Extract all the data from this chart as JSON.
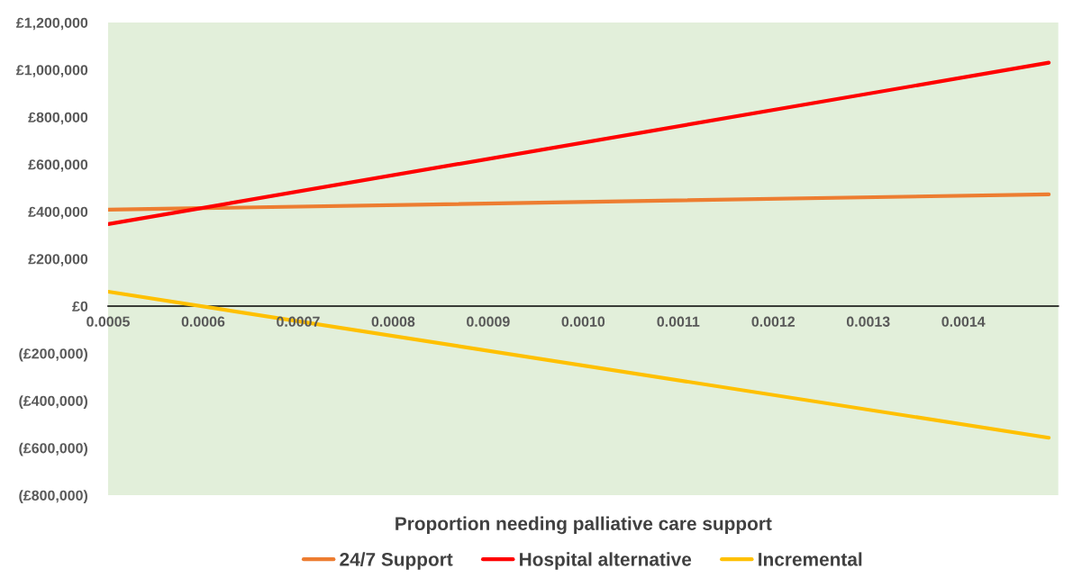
{
  "chart_data": {
    "type": "line",
    "xlabel": "Proportion needing palliative care support",
    "x": [
      0.0005,
      0.00149
    ],
    "series": [
      {
        "name": "24/7 Support",
        "color": "#ed7d31",
        "values": [
          408000,
          473000
        ]
      },
      {
        "name": "Hospital alternative",
        "color": "#ff0000",
        "values": [
          347000,
          1030000
        ]
      },
      {
        "name": "Incremental",
        "color": "#ffc000",
        "values": [
          61000,
          -557000
        ]
      }
    ],
    "xlim": [
      0.0005,
      0.0015
    ],
    "xticks": [
      {
        "value": 0.0005,
        "label": "0.0005"
      },
      {
        "value": 0.0006,
        "label": "0.0006"
      },
      {
        "value": 0.0007,
        "label": "0.0007"
      },
      {
        "value": 0.0008,
        "label": "0.0008"
      },
      {
        "value": 0.0009,
        "label": "0.0009"
      },
      {
        "value": 0.001,
        "label": "0.0010"
      },
      {
        "value": 0.0011,
        "label": "0.0011"
      },
      {
        "value": 0.0012,
        "label": "0.0012"
      },
      {
        "value": 0.0013,
        "label": "0.0013"
      },
      {
        "value": 0.0014,
        "label": "0.0014"
      }
    ],
    "ylim": [
      -800000,
      1200000
    ],
    "yticks": [
      {
        "value": -800000,
        "label": "(£800,000)"
      },
      {
        "value": -600000,
        "label": "(£600,000)"
      },
      {
        "value": -400000,
        "label": "(£400,000)"
      },
      {
        "value": -200000,
        "label": "(£200,000)"
      },
      {
        "value": 0,
        "label": "£0"
      },
      {
        "value": 200000,
        "label": "£200,000"
      },
      {
        "value": 400000,
        "label": "£400,000"
      },
      {
        "value": 600000,
        "label": "£600,000"
      },
      {
        "value": 800000,
        "label": "£800,000"
      },
      {
        "value": 1000000,
        "label": "£1,000,000"
      },
      {
        "value": 1200000,
        "label": "£1,200,000"
      }
    ],
    "grid": false,
    "legend": "bottom",
    "marker": "none",
    "line_style": "solid"
  }
}
